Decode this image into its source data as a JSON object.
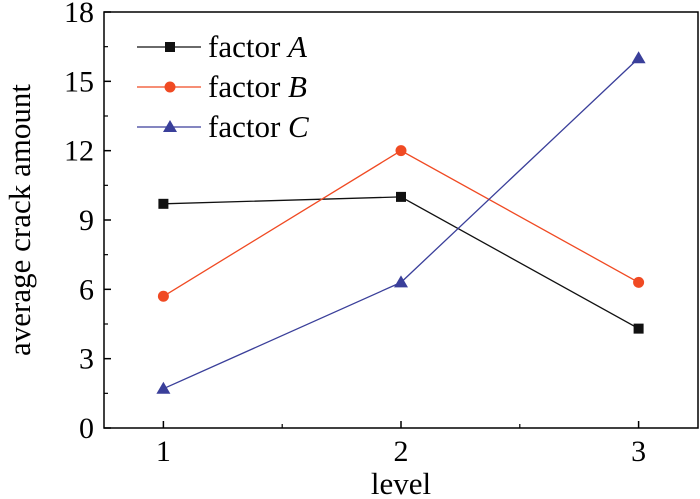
{
  "chart_data": {
    "type": "line",
    "title": "",
    "xlabel": "level",
    "ylabel": "average crack amount",
    "x": [
      1,
      2,
      3
    ],
    "xlim": [
      0.75,
      3.25
    ],
    "ylim": [
      0,
      18
    ],
    "xticks": [
      "1",
      "2",
      "3"
    ],
    "yticks": [
      "0",
      "3",
      "6",
      "9",
      "12",
      "15",
      "18"
    ],
    "grid": false,
    "legend_position": "top-left",
    "series": [
      {
        "name_prefix": "factor ",
        "name_var": "A",
        "color": "#111111",
        "marker": "square",
        "values": [
          9.7,
          10.0,
          4.3
        ]
      },
      {
        "name_prefix": "factor ",
        "name_var": "B",
        "color": "#f04a23",
        "marker": "circle",
        "values": [
          5.7,
          12.0,
          6.3
        ]
      },
      {
        "name_prefix": "factor ",
        "name_var": "C",
        "color": "#3a3f9a",
        "marker": "triangle",
        "values": [
          1.7,
          6.3,
          16.0
        ]
      }
    ]
  }
}
